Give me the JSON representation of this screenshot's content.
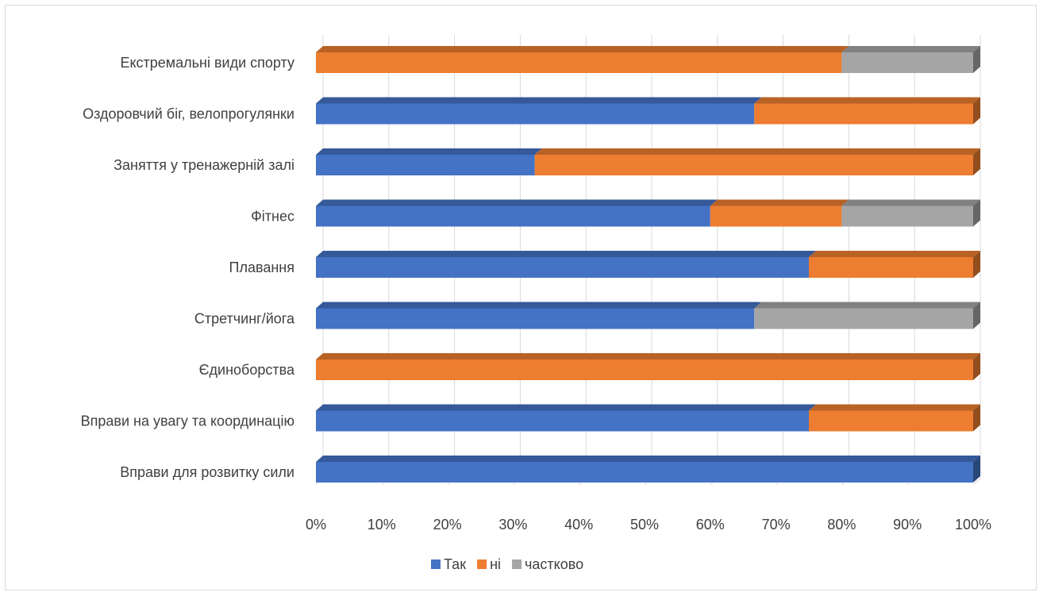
{
  "chart_data": {
    "type": "bar",
    "orientation": "horizontal",
    "stacked": "percent",
    "style": "3d",
    "title": "",
    "xlabel": "",
    "ylabel": "",
    "xlim": [
      0,
      100
    ],
    "x_ticks": [
      "0%",
      "10%",
      "20%",
      "30%",
      "40%",
      "50%",
      "60%",
      "70%",
      "80%",
      "90%",
      "100%"
    ],
    "grid": true,
    "legend_position": "bottom",
    "categories": [
      "Вправи для розвитку сили",
      "Вправи на увагу та координацію",
      "Єдиноборства",
      "Стретчинг/йога",
      "Плавання ",
      "Фітнес",
      "Заняття у тренажерній залі",
      "Оздоровчий біг, велопрогулянки",
      "Екстремальні види спорту"
    ],
    "series": [
      {
        "name": "Так",
        "color": "#4472c4",
        "values": [
          100,
          75,
          0,
          66.7,
          75,
          60,
          33.3,
          66.7,
          0
        ]
      },
      {
        "name": "ні",
        "color": "#ed7d31",
        "values": [
          0,
          25,
          100,
          0,
          25,
          20,
          66.7,
          33.3,
          80
        ]
      },
      {
        "name": "частково",
        "color": "#a5a5a5",
        "values": [
          0,
          0,
          0,
          33.3,
          0,
          20,
          0,
          0,
          20
        ]
      }
    ]
  }
}
